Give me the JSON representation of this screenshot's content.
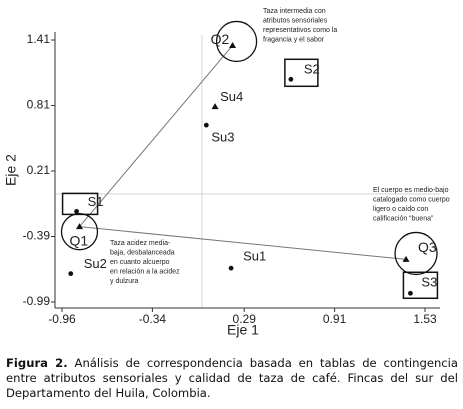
{
  "chart_data": {
    "type": "scatter",
    "x_label": "Eje 1",
    "y_label": "Eje 2",
    "xlim": [
      -0.96,
      1.53
    ],
    "ylim": [
      -0.99,
      1.41
    ],
    "xticks": [
      -0.96,
      -0.34,
      0.29,
      0.91,
      1.53
    ],
    "yticks": [
      -0.99,
      -0.39,
      0.21,
      0.81,
      1.41
    ],
    "points": [
      {
        "label": "Q2",
        "x": 0.21,
        "y": 1.36,
        "marker": "triangle"
      },
      {
        "label": "S2",
        "x": 0.61,
        "y": 1.05,
        "marker": "dot"
      },
      {
        "label": "Su4",
        "x": 0.09,
        "y": 0.8,
        "marker": "triangle"
      },
      {
        "label": "Su3",
        "x": 0.03,
        "y": 0.63,
        "marker": "dot"
      },
      {
        "label": "S1",
        "x": -0.86,
        "y": -0.16,
        "marker": "dot"
      },
      {
        "label": "Q1",
        "x": -0.84,
        "y": -0.3,
        "marker": "triangle"
      },
      {
        "label": "Su2",
        "x": -0.9,
        "y": -0.73,
        "marker": "dot"
      },
      {
        "label": "Su1",
        "x": 0.2,
        "y": -0.68,
        "marker": "dot"
      },
      {
        "label": "Q3",
        "x": 1.4,
        "y": -0.6,
        "marker": "triangle"
      },
      {
        "label": "S3",
        "x": 1.43,
        "y": -0.91,
        "marker": "dot"
      }
    ],
    "annotations": [
      [
        "Taza intermedia con",
        "atributos sensoriales",
        "representativos como la",
        "fragancia y el sabor"
      ],
      [
        "El cuerpo es medio-bajo",
        "catalogado como cuerpo",
        "ligero o caído con",
        "calificación “buena”"
      ],
      [
        "Taza acidez media-",
        "baja, desbalanceada",
        "en cuanto alcuerpo",
        "en relación a la acidez",
        "y dulzura"
      ]
    ]
  },
  "caption": {
    "label": "Figura 2.",
    "text": "Análisis de correspondencia basada en tablas de contingencia entre atributos sensoriales y calidad de taza de café.  Fincas del sur del Departamento del Huila, Colombia."
  }
}
